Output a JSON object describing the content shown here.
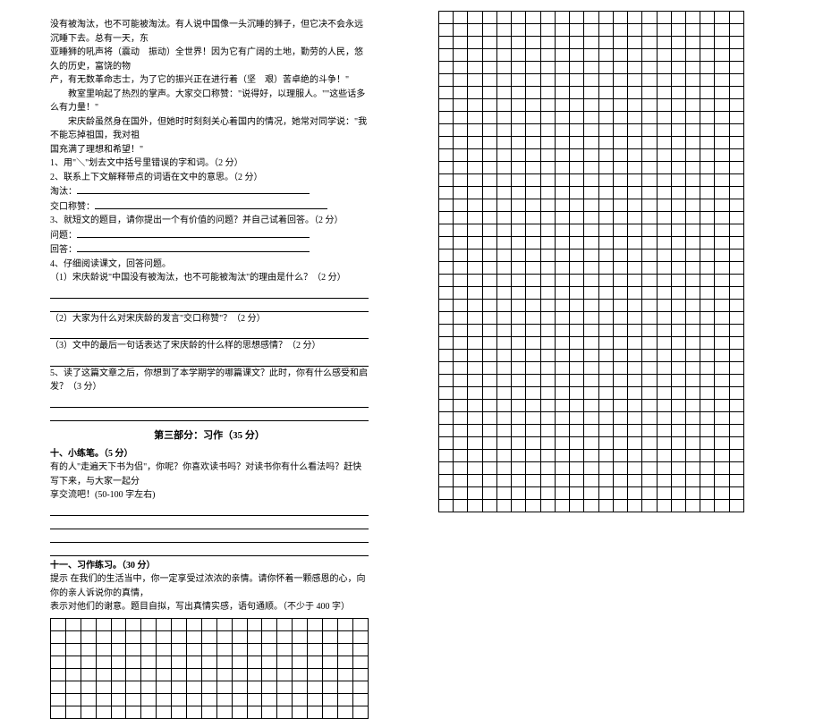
{
  "passage": {
    "l1": "没有被淘汰，也不可能被淘汰。有人说中国像一头沉睡的狮子，但它决不会永远沉睡下去。总有一天，东",
    "l2": "亚睡狮的吼声将（震动　振动）全世界！因为它有广阔的土地，勤劳的人民，悠久的历史，富饶的物",
    "l3": "产，有无数革命志士，为了它的振兴正在进行着（坚　艰）苦卓绝的斗争！\"",
    "l4": "教室里响起了热烈的掌声。大家交口称赞：\"说得好，以理服人。\"\"这些话多么有力量！\"",
    "l5": "宋庆龄虽然身在国外，但她时时刻刻关心着国内的情况，她常对同学说：\"我不能忘掉祖国，我对祖",
    "l6": "国充满了理想和希望！\""
  },
  "q1": "1、用\"＼\"划去文中括号里错误的字和词。（2 分）",
  "q2": "2、联系上下文解释带点的词语在文中的意思。（2 分）",
  "q2a_label": "淘汰：",
  "q2b_label": "交口称赞：",
  "q3": "3、就短文的题目，请你提出一个有价值的问题？并自己试着回答。（2 分）",
  "q3a_label": "问题：",
  "q3b_label": "回答：",
  "q4": "4、仔细阅读课文，回答问题。",
  "q4_1": "（1）宋庆龄说\"中国没有被淘汰，也不可能被淘汰\"的理由是什么？（2 分）",
  "q4_2": "（2）大家为什么对宋庆龄的发言\"交口称赞\"？（2 分）",
  "q4_3": "（3）文中的最后一句话表达了宋庆龄的什么样的思想感情？（2 分）",
  "q5": "5、读了这篇文章之后，你想到了本学期学的哪篇课文？此时，你有什么感受和启发？（3 分）",
  "part3_title": "第三部分：习作（35 分）",
  "h10": "十、小练笔。（5 分）",
  "p10a": "有的人\"走遍天下书为侣\"，你呢？你喜欢读书吗？对读书你有什么看法吗？赶快写下来，与大家一起分",
  "p10b": "享交流吧！(50-100 字左右)",
  "h11": "十一、习作练习。（30 分）",
  "p11a": "提示 在我们的生活当中，你一定享受过浓浓的亲情。请你怀着一颗感恩的心，向你的亲人诉说你的真情，",
  "p11b": "表示对他们的谢意。题目自拟，写出真情实感，语句通顺。（不少于 400 字）",
  "left_grid": {
    "rows": 8,
    "cols": 21
  },
  "right_grid": {
    "rows": 40,
    "cols": 21
  }
}
